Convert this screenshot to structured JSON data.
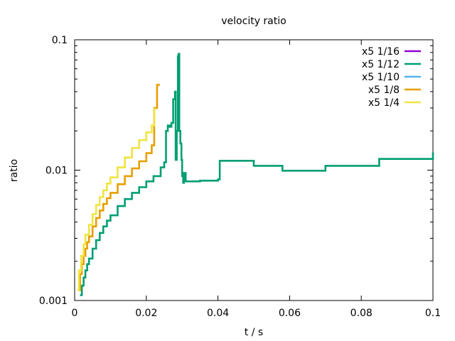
{
  "chart_data": {
    "type": "line",
    "title": "velocity ratio",
    "xlabel": "t / s",
    "ylabel": "ratio",
    "xscale": "linear",
    "yscale": "log",
    "xlim": [
      0,
      0.1
    ],
    "ylim": [
      0.001,
      0.1
    ],
    "xticks": [
      0,
      0.02,
      0.04,
      0.06,
      0.08,
      0.1
    ],
    "xtick_labels": [
      "0",
      "0.02",
      "0.04",
      "0.06",
      "0.08",
      "0.1"
    ],
    "yticks": [
      0.001,
      0.01,
      0.1
    ],
    "ytick_labels": [
      "0.001",
      "0.01",
      "0.1"
    ],
    "grid": false,
    "legend_position": "top-right",
    "series": [
      {
        "name": "x5 1/16",
        "color": "#9400d3",
        "step": true,
        "x": [],
        "y": []
      },
      {
        "name": "x5 1/12",
        "color": "#009e73",
        "step": true,
        "x": [
          0.0015,
          0.002,
          0.0025,
          0.003,
          0.0035,
          0.004,
          0.005,
          0.006,
          0.007,
          0.008,
          0.009,
          0.01,
          0.012,
          0.014,
          0.016,
          0.018,
          0.02,
          0.022,
          0.024,
          0.025,
          0.0255,
          0.026,
          0.0265,
          0.027,
          0.0275,
          0.028,
          0.0282,
          0.0285,
          0.0288,
          0.029,
          0.0292,
          0.0295,
          0.0298,
          0.03,
          0.0303,
          0.0305,
          0.031,
          0.035,
          0.04,
          0.0405,
          0.05,
          0.058,
          0.07,
          0.085,
          0.1
        ],
        "y": [
          0.0011,
          0.0013,
          0.0015,
          0.0017,
          0.0019,
          0.0021,
          0.0025,
          0.0029,
          0.0033,
          0.0037,
          0.0041,
          0.0045,
          0.0053,
          0.006,
          0.0067,
          0.0074,
          0.0082,
          0.009,
          0.0105,
          0.0115,
          0.02,
          0.022,
          0.0215,
          0.023,
          0.035,
          0.04,
          0.012,
          0.02,
          0.075,
          0.078,
          0.02,
          0.016,
          0.012,
          0.009,
          0.008,
          0.0095,
          0.0082,
          0.0083,
          0.0085,
          0.0118,
          0.0108,
          0.0099,
          0.0108,
          0.0122,
          0.0137
        ]
      },
      {
        "name": "x5 1/10",
        "color": "#56b4e9",
        "step": true,
        "x": [],
        "y": []
      },
      {
        "name": "x5 1/8",
        "color": "#e69f00",
        "step": true,
        "x": [
          0.001,
          0.0015,
          0.002,
          0.0025,
          0.003,
          0.0035,
          0.004,
          0.005,
          0.006,
          0.007,
          0.008,
          0.009,
          0.01,
          0.012,
          0.014,
          0.016,
          0.018,
          0.02,
          0.0215,
          0.0222,
          0.023,
          0.0235
        ],
        "y": [
          0.0012,
          0.0016,
          0.0019,
          0.0022,
          0.0025,
          0.0028,
          0.0031,
          0.0037,
          0.0043,
          0.0049,
          0.0055,
          0.0061,
          0.0067,
          0.0078,
          0.009,
          0.0103,
          0.0117,
          0.0135,
          0.0155,
          0.03,
          0.045,
          0.046
        ]
      },
      {
        "name": "x5 1/4",
        "color": "#f0e442",
        "step": true,
        "x": [
          0.0008,
          0.0012,
          0.0018,
          0.0025,
          0.003,
          0.004,
          0.005,
          0.006,
          0.007,
          0.008,
          0.009,
          0.01,
          0.012,
          0.014,
          0.016,
          0.018,
          0.02,
          0.0215,
          0.0222
        ],
        "y": [
          0.0012,
          0.0017,
          0.0022,
          0.0027,
          0.0032,
          0.0038,
          0.0046,
          0.0054,
          0.0062,
          0.007,
          0.0079,
          0.0088,
          0.0105,
          0.0125,
          0.0148,
          0.017,
          0.0195,
          0.022,
          0.03
        ]
      }
    ]
  }
}
